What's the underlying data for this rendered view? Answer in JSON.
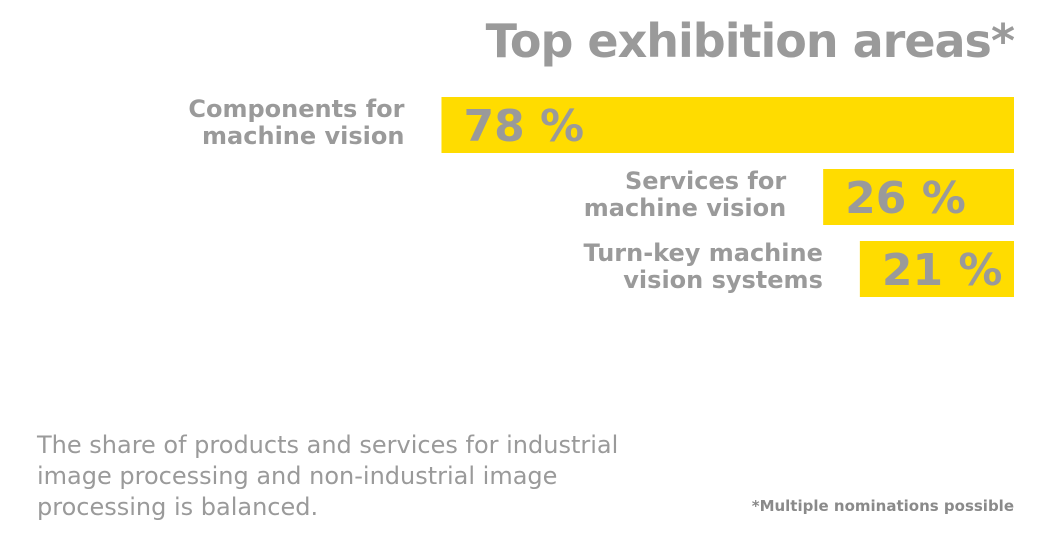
{
  "colors": {
    "bar": "#ffdc00",
    "text": "#9a9a9a"
  },
  "chart_data": {
    "type": "bar",
    "title": "Top exhibition areas*",
    "categories": [
      [
        "Components for",
        "machine vision"
      ],
      [
        "Services for",
        "machine vision"
      ],
      [
        "Turn-key machine",
        "vision systems"
      ]
    ],
    "values": [
      78,
      26,
      21
    ],
    "value_labels": [
      "78 %",
      "26 %",
      "21 %"
    ],
    "unit": "%",
    "xlim": [
      0,
      100
    ],
    "grid": false,
    "legend": "none"
  },
  "caption": "The share of products and services for industrial image processing and non-industrial image processing is balanced.",
  "footnote": "*Multiple nominations possible"
}
